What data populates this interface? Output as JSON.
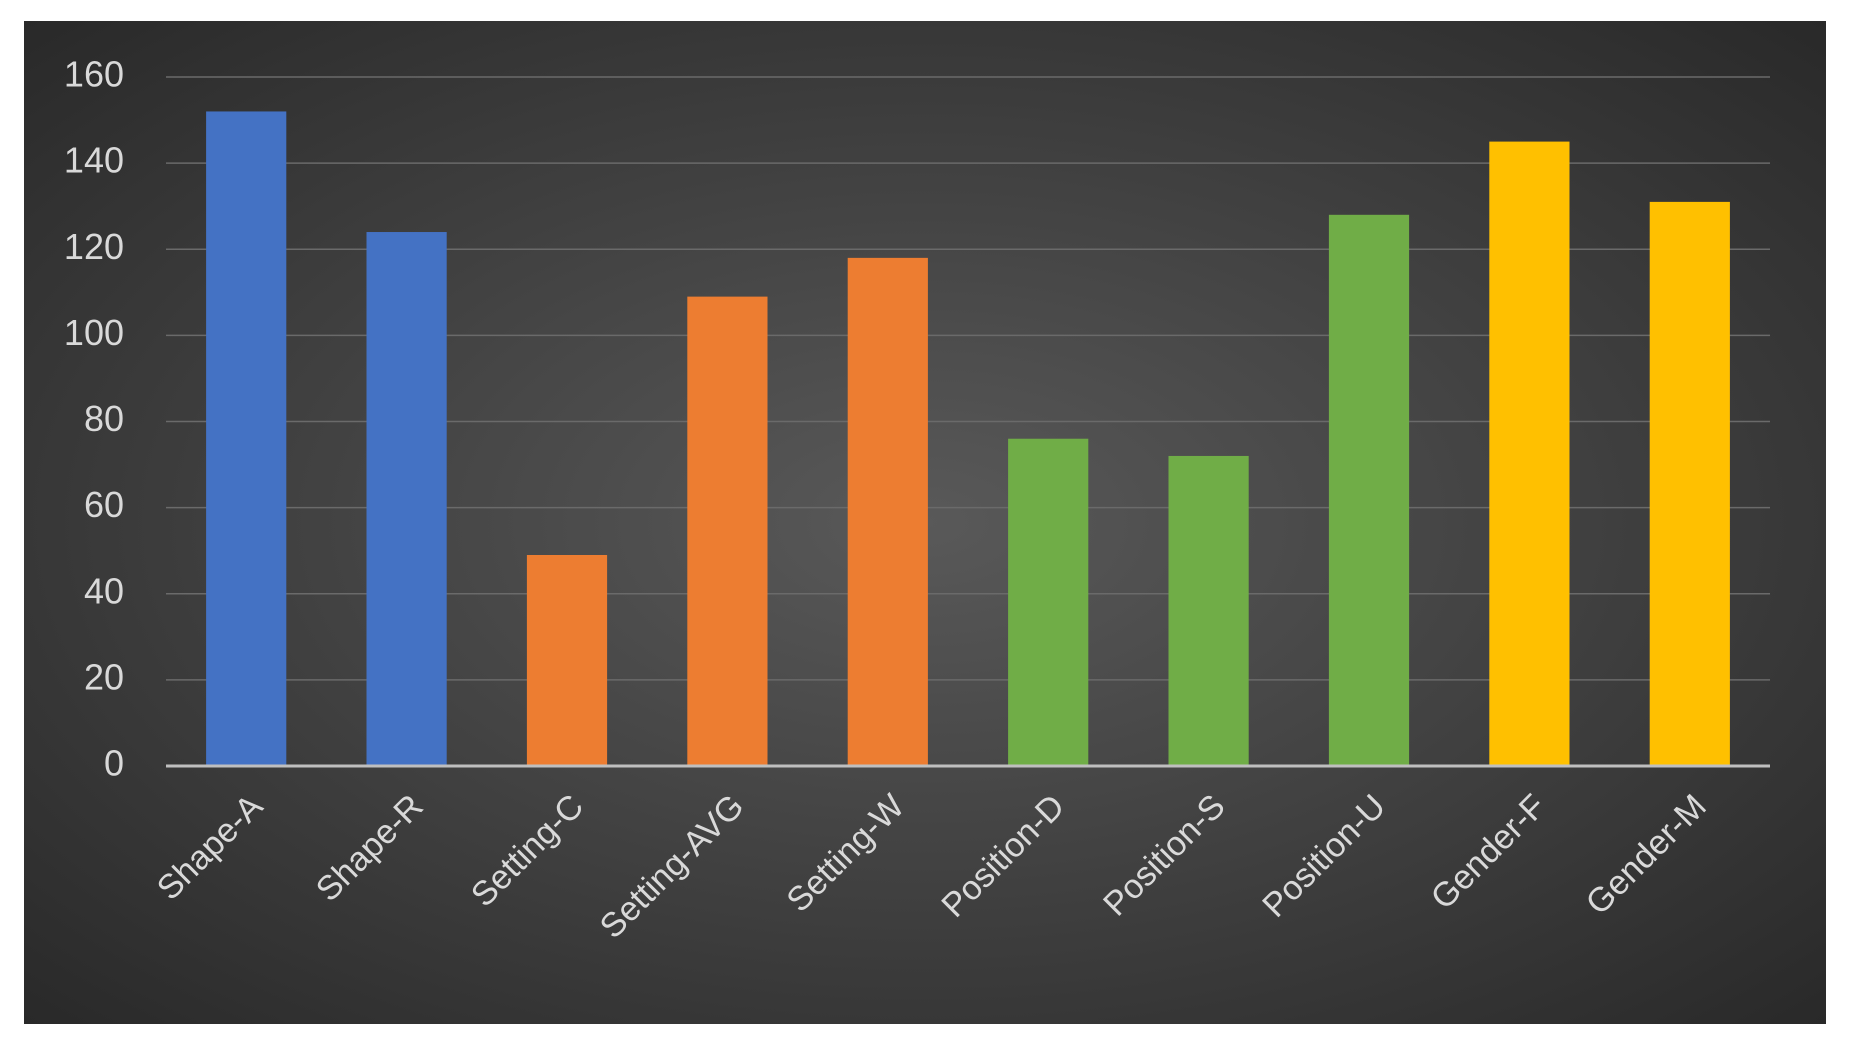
{
  "chart_data": {
    "type": "bar",
    "categories": [
      "Shape-A",
      "Shape-R",
      "Setting-C",
      "Setting-AVG",
      "Setting-W",
      "Position-D",
      "Position-S",
      "Position-U",
      "Gender-F",
      "Gender-M"
    ],
    "values": [
      152,
      124,
      49,
      109,
      118,
      76,
      72,
      128,
      145,
      131
    ],
    "colors": [
      "#4472c4",
      "#4472c4",
      "#ed7d31",
      "#ed7d31",
      "#ed7d31",
      "#70ad47",
      "#70ad47",
      "#70ad47",
      "#ffc000",
      "#ffc000"
    ],
    "ylim": [
      0,
      160
    ],
    "yticks": [
      0,
      20,
      40,
      60,
      80,
      100,
      120,
      140,
      160
    ],
    "grid": true
  }
}
